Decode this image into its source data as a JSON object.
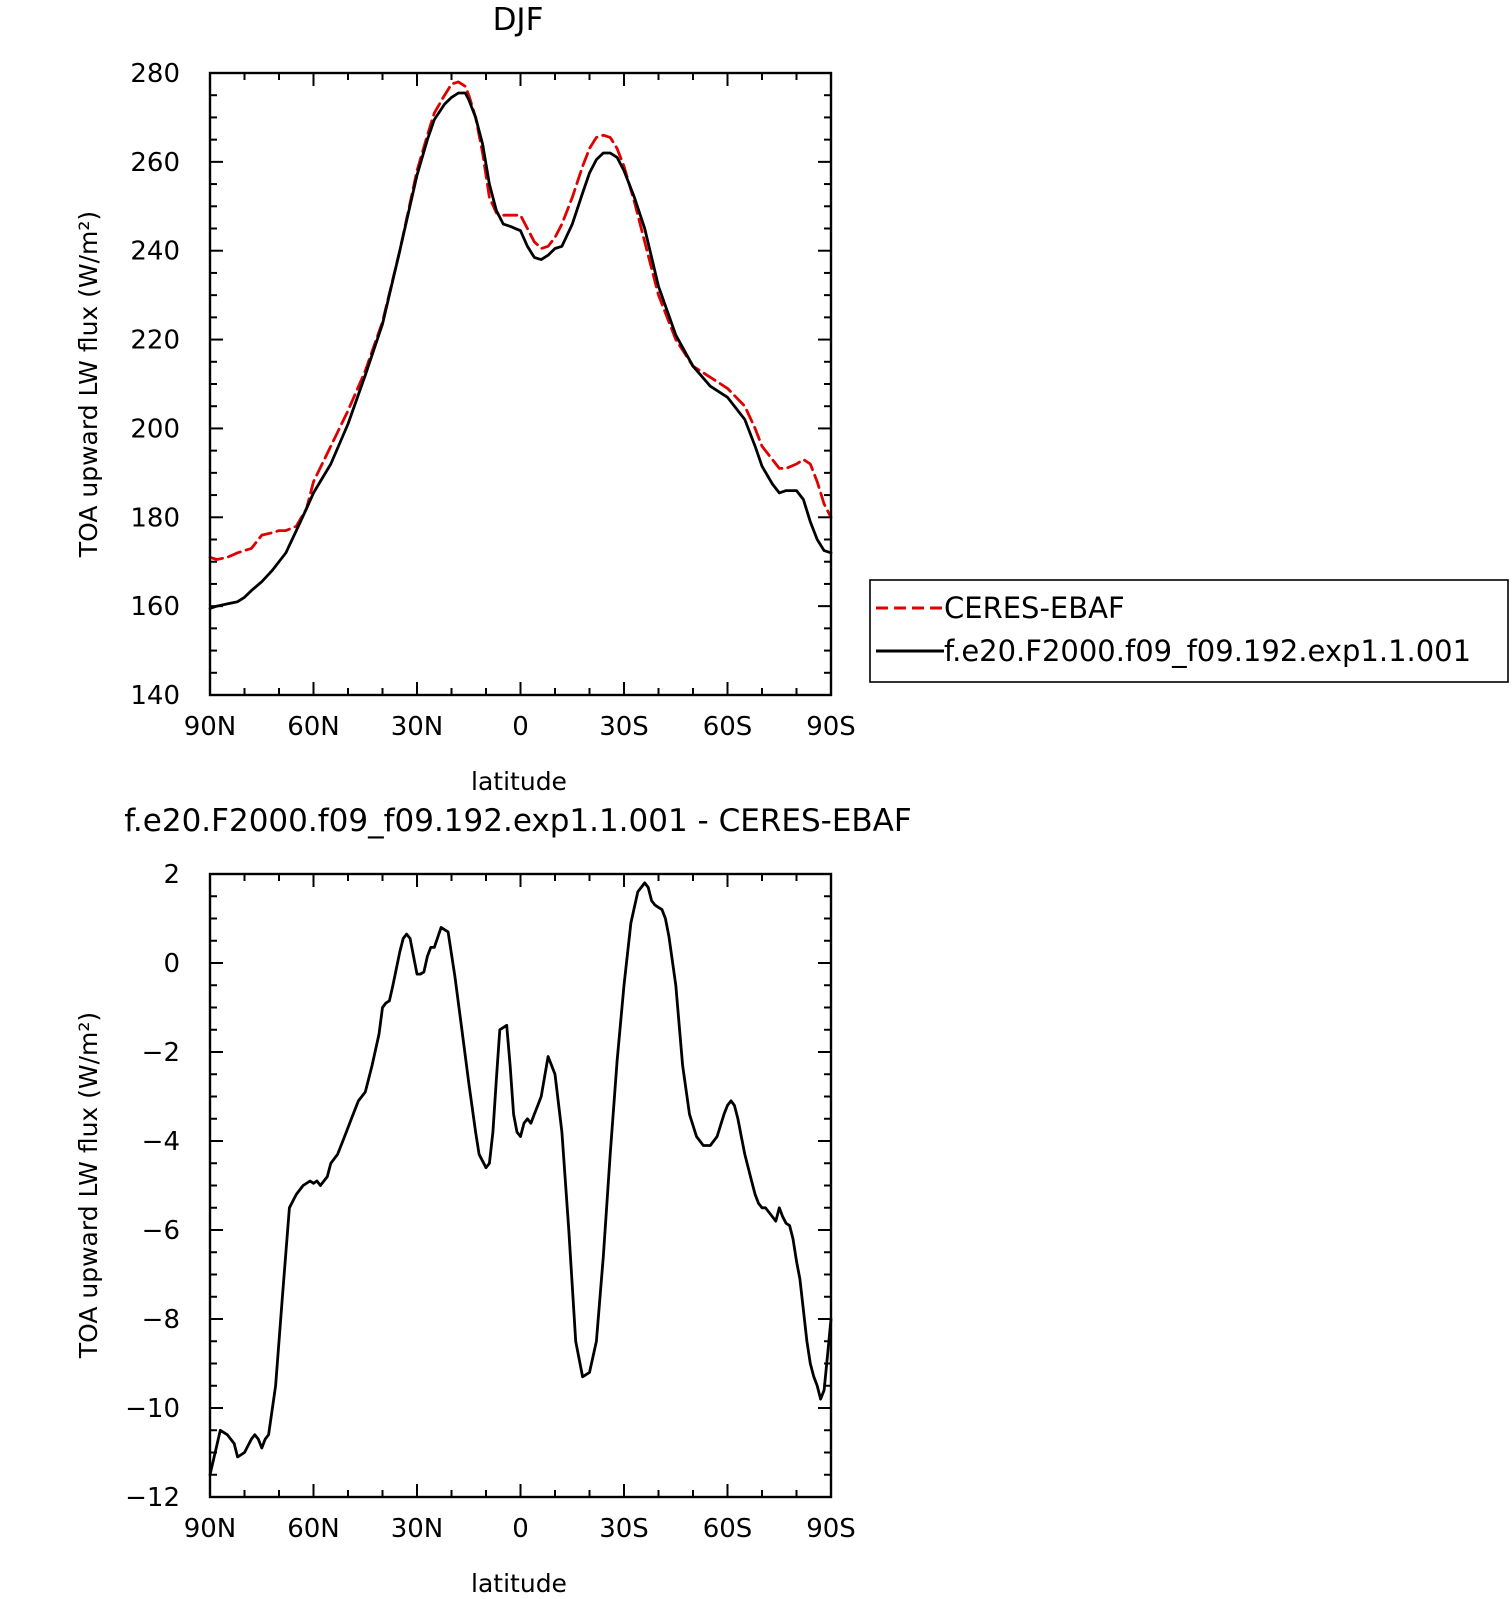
{
  "colors": {
    "obs": "#e00000",
    "model": "#000000",
    "axes": "#000000"
  },
  "chart_data": [
    {
      "type": "line",
      "title": "DJF",
      "xlabel": "latitude",
      "ylabel": "TOA upward LW flux (W/m²)",
      "xlim": [
        90,
        -90
      ],
      "ylim": [
        140,
        280
      ],
      "x_ticks": [
        90,
        60,
        30,
        0,
        -30,
        -60,
        -90
      ],
      "x_tick_labels": [
        "90N",
        "60N",
        "30N",
        "0",
        "30S",
        "60S",
        "90S"
      ],
      "y_ticks": [
        140,
        160,
        180,
        200,
        220,
        240,
        260,
        280
      ],
      "y_tick_labels": [
        "140",
        "160",
        "180",
        "200",
        "220",
        "240",
        "260",
        "280"
      ],
      "grid": false,
      "legend": "right, outside plot",
      "series": [
        {
          "name": "CERES-EBAF",
          "style": "dashed",
          "color": "#e00000",
          "x": [
            90,
            88,
            85,
            82,
            80,
            78,
            75,
            72,
            70,
            68,
            65,
            62,
            60,
            55,
            50,
            45,
            40,
            35,
            30,
            27,
            25,
            22,
            20,
            18,
            16,
            15,
            13,
            11,
            9,
            7,
            5,
            3,
            0,
            -2,
            -4,
            -6,
            -8,
            -10,
            -12,
            -15,
            -18,
            -20,
            -22,
            -24,
            -26,
            -28,
            -30,
            -33,
            -36,
            -40,
            -45,
            -50,
            -55,
            -60,
            -65,
            -68,
            -70,
            -73,
            -75,
            -77,
            -80,
            -82,
            -84,
            -86,
            -88,
            -90
          ],
          "y": [
            171,
            170.5,
            171,
            172,
            172.5,
            173,
            176,
            176.5,
            177,
            177,
            178,
            182,
            188,
            196,
            204,
            213,
            224,
            240,
            258,
            266,
            271,
            275,
            277.5,
            278,
            277,
            275,
            270,
            262,
            252,
            248.5,
            248,
            248,
            248,
            245,
            242,
            240.5,
            241,
            243,
            246,
            252,
            259,
            263,
            265.5,
            266,
            265.5,
            263,
            259,
            251,
            242,
            230,
            220,
            214,
            211.5,
            209,
            205,
            200,
            196,
            193,
            191,
            191,
            192,
            193,
            192,
            188,
            183,
            180
          ]
        },
        {
          "name": "f.e20.F2000.f09_f09.192.exp1.1.001",
          "style": "solid",
          "color": "#000000",
          "x": [
            90,
            88,
            85,
            82,
            80,
            78,
            75,
            72,
            70,
            68,
            65,
            62,
            60,
            55,
            50,
            45,
            40,
            35,
            30,
            27,
            25,
            22,
            20,
            18,
            16,
            15,
            13,
            11,
            9,
            7,
            5,
            3,
            0,
            -2,
            -4,
            -6,
            -8,
            -10,
            -12,
            -15,
            -18,
            -20,
            -22,
            -24,
            -26,
            -28,
            -30,
            -33,
            -36,
            -40,
            -45,
            -50,
            -55,
            -60,
            -65,
            -68,
            -70,
            -73,
            -75,
            -77,
            -80,
            -82,
            -84,
            -86,
            -88,
            -90
          ],
          "y": [
            159.5,
            160,
            160.5,
            161,
            162,
            163.5,
            165.5,
            168,
            170,
            172,
            177,
            182,
            185.5,
            192,
            201,
            212,
            223.5,
            240,
            257,
            265,
            269.5,
            273,
            274.5,
            275.5,
            275.5,
            274,
            270,
            264,
            255,
            249,
            246,
            245.5,
            244.5,
            241,
            238.5,
            238,
            239,
            240.5,
            241,
            246,
            253,
            257.5,
            260.5,
            262,
            262,
            261,
            258,
            252,
            245,
            232,
            221,
            214,
            209.5,
            207,
            202,
            196,
            191.5,
            187.5,
            185.5,
            186,
            186,
            184,
            179,
            175,
            172.5,
            172
          ]
        }
      ]
    },
    {
      "type": "line",
      "title": "f.e20.F2000.f09_f09.192.exp1.1.001 - CERES-EBAF",
      "xlabel": "latitude",
      "ylabel": "TOA upward LW flux (W/m²)",
      "xlim": [
        90,
        -90
      ],
      "ylim": [
        -12,
        2
      ],
      "x_ticks": [
        90,
        60,
        30,
        0,
        -30,
        -60,
        -90
      ],
      "x_tick_labels": [
        "90N",
        "60N",
        "30N",
        "0",
        "30S",
        "60S",
        "90S"
      ],
      "y_ticks": [
        -12,
        -10,
        -8,
        -6,
        -4,
        -2,
        0,
        2
      ],
      "y_tick_labels": [
        "−12",
        "−10",
        "−8",
        "−6",
        "−4",
        "−2",
        "0",
        "2"
      ],
      "grid": false,
      "series": [
        {
          "style": "solid",
          "color": "#000000",
          "x": [
            90,
            87,
            85,
            83,
            82,
            80,
            78,
            77,
            76,
            75,
            74,
            73,
            71,
            69,
            67,
            65,
            63,
            61,
            60,
            59,
            58,
            56,
            55,
            53,
            51,
            49,
            47,
            45,
            43,
            41,
            40,
            39,
            38,
            37,
            35,
            34,
            33,
            32,
            30,
            29,
            28,
            27,
            26,
            25,
            23,
            21,
            19,
            17,
            15,
            13,
            12,
            10,
            9,
            8,
            7,
            6,
            4,
            3,
            2,
            1,
            0,
            -1,
            -2,
            -3,
            -4,
            -5,
            -6,
            -8,
            -10,
            -12,
            -14,
            -16,
            -18,
            -20,
            -22,
            -24,
            -26,
            -28,
            -30,
            -32,
            -34,
            -36,
            -37,
            -38,
            -39,
            -40,
            -41,
            -42,
            -43,
            -45,
            -47,
            -49,
            -51,
            -53,
            -55,
            -57,
            -59,
            -60,
            -61,
            -62,
            -63,
            -64,
            -65,
            -66,
            -67,
            -68,
            -69,
            -70,
            -71,
            -72,
            -73,
            -74,
            -75,
            -76,
            -77,
            -78,
            -79,
            -80,
            -81,
            -82,
            -83,
            -84,
            -85,
            -86,
            -87,
            -88,
            -89,
            -90
          ],
          "y": [
            -11.5,
            -10.5,
            -10.6,
            -10.8,
            -11.1,
            -11.0,
            -10.7,
            -10.6,
            -10.7,
            -10.9,
            -10.7,
            -10.6,
            -9.5,
            -7.5,
            -5.5,
            -5.2,
            -5.0,
            -4.9,
            -4.95,
            -4.9,
            -5.0,
            -4.8,
            -4.5,
            -4.3,
            -3.9,
            -3.5,
            -3.1,
            -2.9,
            -2.3,
            -1.6,
            -1.0,
            -0.9,
            -0.85,
            -0.5,
            0.25,
            0.55,
            0.65,
            0.55,
            -0.25,
            -0.25,
            -0.2,
            0.15,
            0.35,
            0.35,
            0.8,
            0.7,
            -0.3,
            -1.5,
            -2.7,
            -3.8,
            -4.3,
            -4.6,
            -4.5,
            -3.8,
            -2.6,
            -1.5,
            -1.4,
            -2.3,
            -3.4,
            -3.8,
            -3.9,
            -3.6,
            -3.5,
            -3.6,
            -3.4,
            -3.2,
            -3.0,
            -2.1,
            -2.5,
            -3.8,
            -6.0,
            -8.5,
            -9.3,
            -9.2,
            -8.5,
            -6.6,
            -4.3,
            -2.2,
            -0.5,
            0.9,
            1.6,
            1.8,
            1.7,
            1.4,
            1.3,
            1.25,
            1.2,
            1.0,
            0.6,
            -0.5,
            -2.3,
            -3.4,
            -3.9,
            -4.1,
            -4.1,
            -3.9,
            -3.4,
            -3.2,
            -3.1,
            -3.2,
            -3.5,
            -3.9,
            -4.3,
            -4.6,
            -4.9,
            -5.2,
            -5.4,
            -5.5,
            -5.5,
            -5.6,
            -5.7,
            -5.8,
            -5.5,
            -5.7,
            -5.85,
            -5.9,
            -6.2,
            -6.7,
            -7.1,
            -7.8,
            -8.5,
            -9.0,
            -9.3,
            -9.5,
            -9.8,
            -9.6,
            -8.8,
            -8.0
          ]
        }
      ]
    }
  ]
}
